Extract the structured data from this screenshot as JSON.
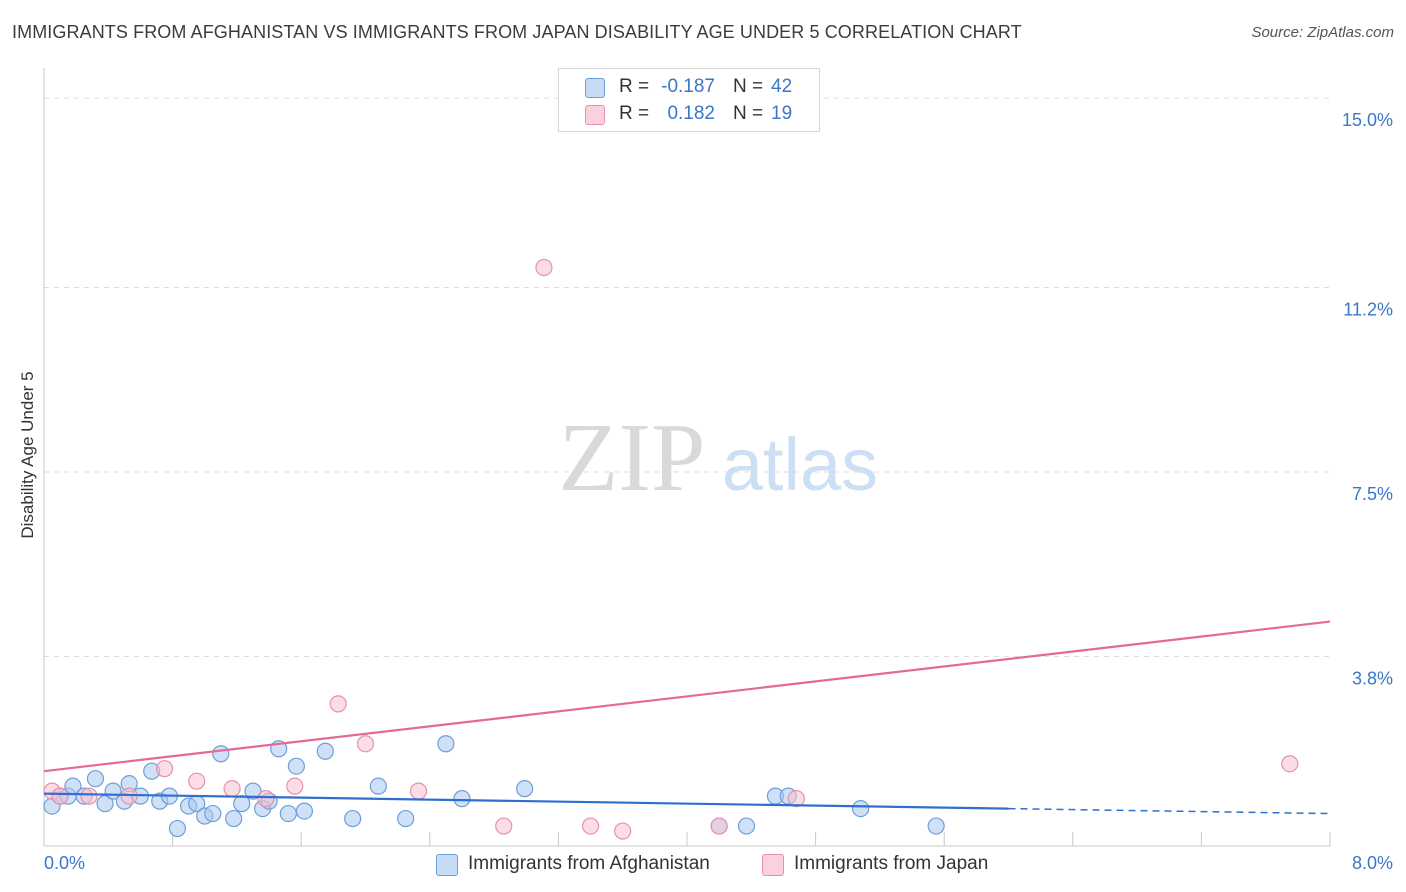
{
  "title": "IMMIGRANTS FROM AFGHANISTAN VS IMMIGRANTS FROM JAPAN DISABILITY AGE UNDER 5 CORRELATION CHART",
  "source": "Source: ZipAtlas.com",
  "watermark": {
    "zip": "ZIP",
    "atlas": "atlas"
  },
  "legend": {
    "rows": [
      {
        "r_label": "R =",
        "r_value": "-0.187",
        "n_label": "N =",
        "n_value": "42",
        "color": "#a9c8f0",
        "border": "#6f9fd8"
      },
      {
        "r_label": "R =",
        "r_value": "0.182",
        "n_label": "N =",
        "n_value": "19",
        "color": "#f7c1d0",
        "border": "#e891ab"
      }
    ]
  },
  "bottom_legend": [
    {
      "label": "Immigrants from Afghanistan",
      "color": "#a9c8f0",
      "border": "#6f9fd8"
    },
    {
      "label": "Immigrants from Japan",
      "color": "#f7c1d0",
      "border": "#e891ab"
    }
  ],
  "chart_data": {
    "type": "scatter",
    "title": "IMMIGRANTS FROM AFGHANISTAN VS IMMIGRANTS FROM JAPAN DISABILITY AGE UNDER 5 CORRELATION CHART",
    "xlabel": "",
    "ylabel": "Disability Age Under 5",
    "xlim": [
      0,
      8.0
    ],
    "ylim": [
      0,
      15.4
    ],
    "x_ticks": [
      0,
      8.0
    ],
    "x_tick_labels": [
      "0.0%",
      "8.0%"
    ],
    "y_ticks": [
      3.8,
      7.5,
      11.2,
      15.0
    ],
    "y_tick_labels": [
      "3.8%",
      "7.5%",
      "11.2%",
      "15.0%"
    ],
    "series": [
      {
        "name": "Immigrants from Afghanistan",
        "color": "#6f9fd8",
        "fill": "#a9c8f0",
        "points": [
          [
            0.05,
            0.8
          ],
          [
            0.1,
            1.0
          ],
          [
            0.15,
            1.0
          ],
          [
            0.18,
            1.2
          ],
          [
            0.25,
            1.0
          ],
          [
            0.32,
            1.35
          ],
          [
            0.38,
            0.85
          ],
          [
            0.43,
            1.1
          ],
          [
            0.5,
            0.9
          ],
          [
            0.53,
            1.25
          ],
          [
            0.6,
            1.0
          ],
          [
            0.67,
            1.5
          ],
          [
            0.72,
            0.9
          ],
          [
            0.78,
            1.0
          ],
          [
            0.83,
            0.35
          ],
          [
            0.9,
            0.8
          ],
          [
            0.95,
            0.85
          ],
          [
            1.0,
            0.6
          ],
          [
            1.05,
            0.65
          ],
          [
            1.1,
            1.85
          ],
          [
            1.18,
            0.55
          ],
          [
            1.23,
            0.85
          ],
          [
            1.3,
            1.1
          ],
          [
            1.36,
            0.75
          ],
          [
            1.4,
            0.9
          ],
          [
            1.46,
            1.95
          ],
          [
            1.52,
            0.65
          ],
          [
            1.57,
            1.6
          ],
          [
            1.62,
            0.7
          ],
          [
            1.75,
            1.9
          ],
          [
            1.92,
            0.55
          ],
          [
            2.08,
            1.2
          ],
          [
            2.25,
            0.55
          ],
          [
            2.5,
            2.05
          ],
          [
            2.6,
            0.95
          ],
          [
            2.99,
            1.15
          ],
          [
            4.2,
            0.4
          ],
          [
            4.37,
            0.4
          ],
          [
            4.55,
            1.0
          ],
          [
            4.63,
            1.0
          ],
          [
            5.08,
            0.75
          ],
          [
            5.55,
            0.4
          ]
        ],
        "trend": {
          "x": [
            0,
            6.0,
            8.0
          ],
          "y": [
            1.05,
            0.75,
            0.65
          ],
          "solid_until": 6.0
        }
      },
      {
        "name": "Immigrants from Japan",
        "color": "#e891ab",
        "fill": "#f7c1d0",
        "points": [
          [
            0.05,
            1.1
          ],
          [
            0.1,
            1.0
          ],
          [
            0.28,
            1.0
          ],
          [
            0.53,
            1.0
          ],
          [
            0.75,
            1.55
          ],
          [
            0.95,
            1.3
          ],
          [
            1.17,
            1.15
          ],
          [
            1.38,
            0.95
          ],
          [
            1.56,
            1.2
          ],
          [
            1.83,
            2.85
          ],
          [
            2.0,
            2.05
          ],
          [
            2.33,
            1.1
          ],
          [
            2.86,
            0.4
          ],
          [
            3.11,
            11.6
          ],
          [
            3.4,
            0.4
          ],
          [
            3.6,
            0.3
          ],
          [
            4.2,
            0.4
          ],
          [
            4.68,
            0.95
          ],
          [
            7.75,
            1.65
          ]
        ],
        "trend": {
          "x": [
            0,
            8.0
          ],
          "y": [
            1.5,
            4.5
          ]
        }
      }
    ]
  }
}
